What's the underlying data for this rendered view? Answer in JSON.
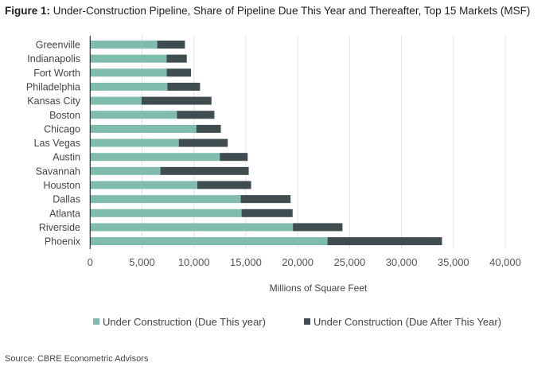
{
  "chart_data": {
    "type": "bar",
    "orientation": "horizontal",
    "stacked": true,
    "title_prefix": "Figure 1:",
    "title": "Under-Construction Pipeline, Share of Pipeline Due This Year and Thereafter, Top 15 Markets (MSF)",
    "xlabel": "Millions of Square Feet",
    "ylabel": "",
    "xlim": [
      0,
      40000
    ],
    "xticks": [
      "0",
      "5,000",
      "10,000",
      "15,000",
      "20,000",
      "25,000",
      "30,000",
      "35,000",
      "40,000"
    ],
    "grid": "vertical",
    "legend": "bottom",
    "categories": [
      "Greenville",
      "Indianapolis",
      "Fort Worth",
      "Philadelphia",
      "Kansas City",
      "Boston",
      "Chicago",
      "Las Vegas",
      "Austin",
      "Savannah",
      "Houston",
      "Dallas",
      "Atlanta",
      "Riverside",
      "Phoenix"
    ],
    "series": [
      {
        "name": "Under Construction (Due This year)",
        "color": "#7fbcad",
        "values": [
          6460,
          7360,
          7380,
          7440,
          4950,
          8360,
          10230,
          8540,
          12490,
          6770,
          10330,
          14510,
          14590,
          19540,
          22870
        ]
      },
      {
        "name": "Under Construction (Due After This Year)",
        "color": "#3f4c50",
        "values": [
          2670,
          1950,
          2340,
          3150,
          6740,
          3610,
          2360,
          4720,
          2690,
          8510,
          5180,
          4800,
          4920,
          4770,
          11030
        ]
      }
    ]
  },
  "source": "Source: CBRE Econometric Advisors"
}
